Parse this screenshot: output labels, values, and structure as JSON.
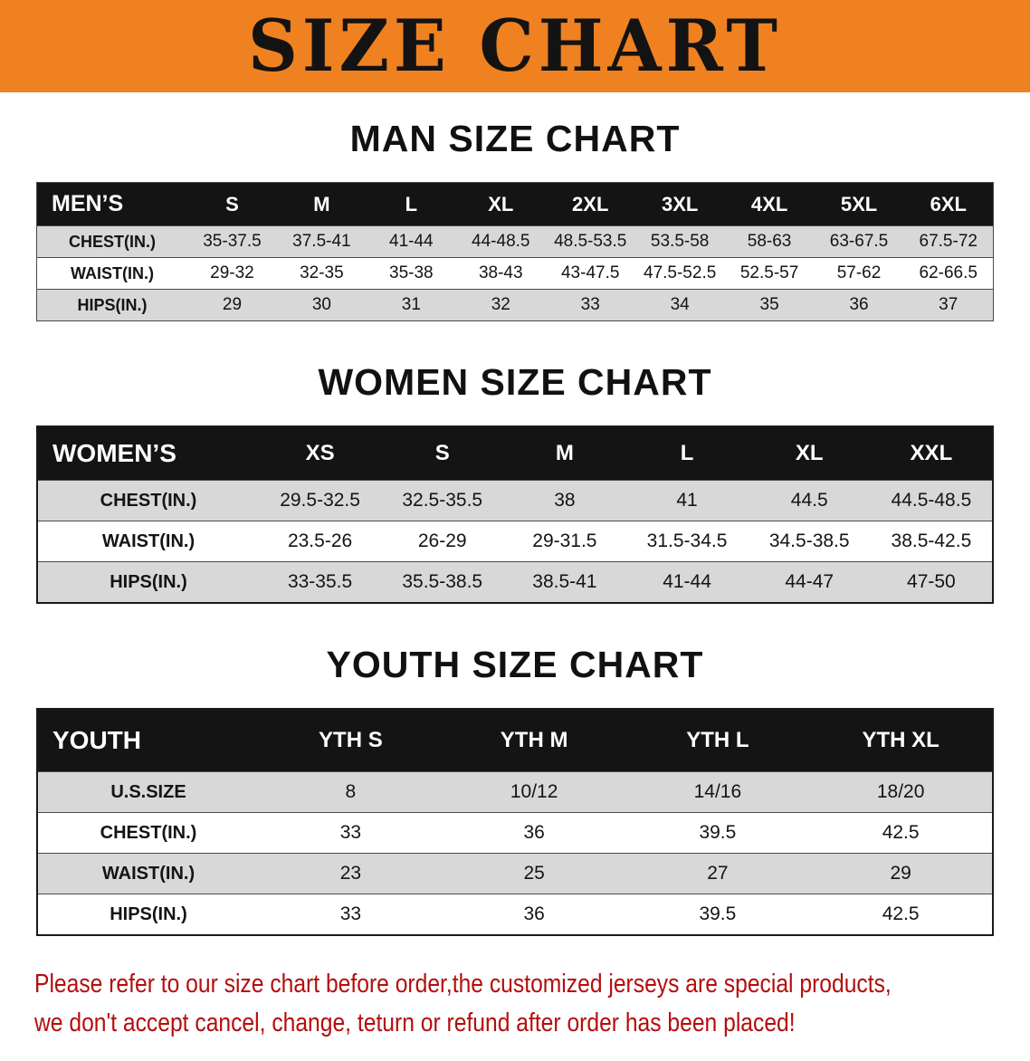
{
  "banner": {
    "title": "SIZE CHART",
    "bg_color": "#f08121"
  },
  "sections": [
    {
      "id": "men",
      "heading": "MAN SIZE CHART",
      "table": {
        "header_label": "MEN’S",
        "columns": [
          "S",
          "M",
          "L",
          "XL",
          "2XL",
          "3XL",
          "4XL",
          "5XL",
          "6XL"
        ],
        "rows": [
          {
            "label": "CHEST(IN.)",
            "values": [
              "35-37.5",
              "37.5-41",
              "41-44",
              "44-48.5",
              "48.5-53.5",
              "53.5-58",
              "58-63",
              "63-67.5",
              "67.5-72"
            ]
          },
          {
            "label": "WAIST(IN.)",
            "values": [
              "29-32",
              "32-35",
              "35-38",
              "38-43",
              "43-47.5",
              "47.5-52.5",
              "52.5-57",
              "57-62",
              "62-66.5"
            ]
          },
          {
            "label": "HIPS(IN.)",
            "values": [
              "29",
              "30",
              "31",
              "32",
              "33",
              "34",
              "35",
              "36",
              "37"
            ]
          }
        ]
      }
    },
    {
      "id": "women",
      "heading": "WOMEN SIZE CHART",
      "table": {
        "header_label": "WOMEN’S",
        "columns": [
          "XS",
          "S",
          "M",
          "L",
          "XL",
          "XXL"
        ],
        "rows": [
          {
            "label": "CHEST(IN.)",
            "values": [
              "29.5-32.5",
              "32.5-35.5",
              "38",
              "41",
              "44.5",
              "44.5-48.5"
            ]
          },
          {
            "label": "WAIST(IN.)",
            "values": [
              "23.5-26",
              "26-29",
              "29-31.5",
              "31.5-34.5",
              "34.5-38.5",
              "38.5-42.5"
            ]
          },
          {
            "label": "HIPS(IN.)",
            "values": [
              "33-35.5",
              "35.5-38.5",
              "38.5-41",
              "41-44",
              "44-47",
              "47-50"
            ]
          }
        ]
      }
    },
    {
      "id": "youth",
      "heading": "YOUTH SIZE CHART",
      "table": {
        "header_label": "YOUTH",
        "columns": [
          "YTH S",
          "YTH M",
          "YTH L",
          "YTH XL"
        ],
        "rows": [
          {
            "label": "U.S.SIZE",
            "values": [
              "8",
              "10/12",
              "14/16",
              "18/20"
            ]
          },
          {
            "label": "CHEST(IN.)",
            "values": [
              "33",
              "36",
              "39.5",
              "42.5"
            ]
          },
          {
            "label": "WAIST(IN.)",
            "values": [
              "23",
              "25",
              "27",
              "29"
            ]
          },
          {
            "label": "HIPS(IN.)",
            "values": [
              "33",
              "36",
              "39.5",
              "42.5"
            ]
          }
        ]
      }
    }
  ],
  "disclaimer": {
    "color": "#b50d0d",
    "lines": [
      "Please refer to our size chart before order,the customized jerseys are special products,",
      "we don't accept cancel, change, teturn or refund after order has been placed!"
    ]
  }
}
